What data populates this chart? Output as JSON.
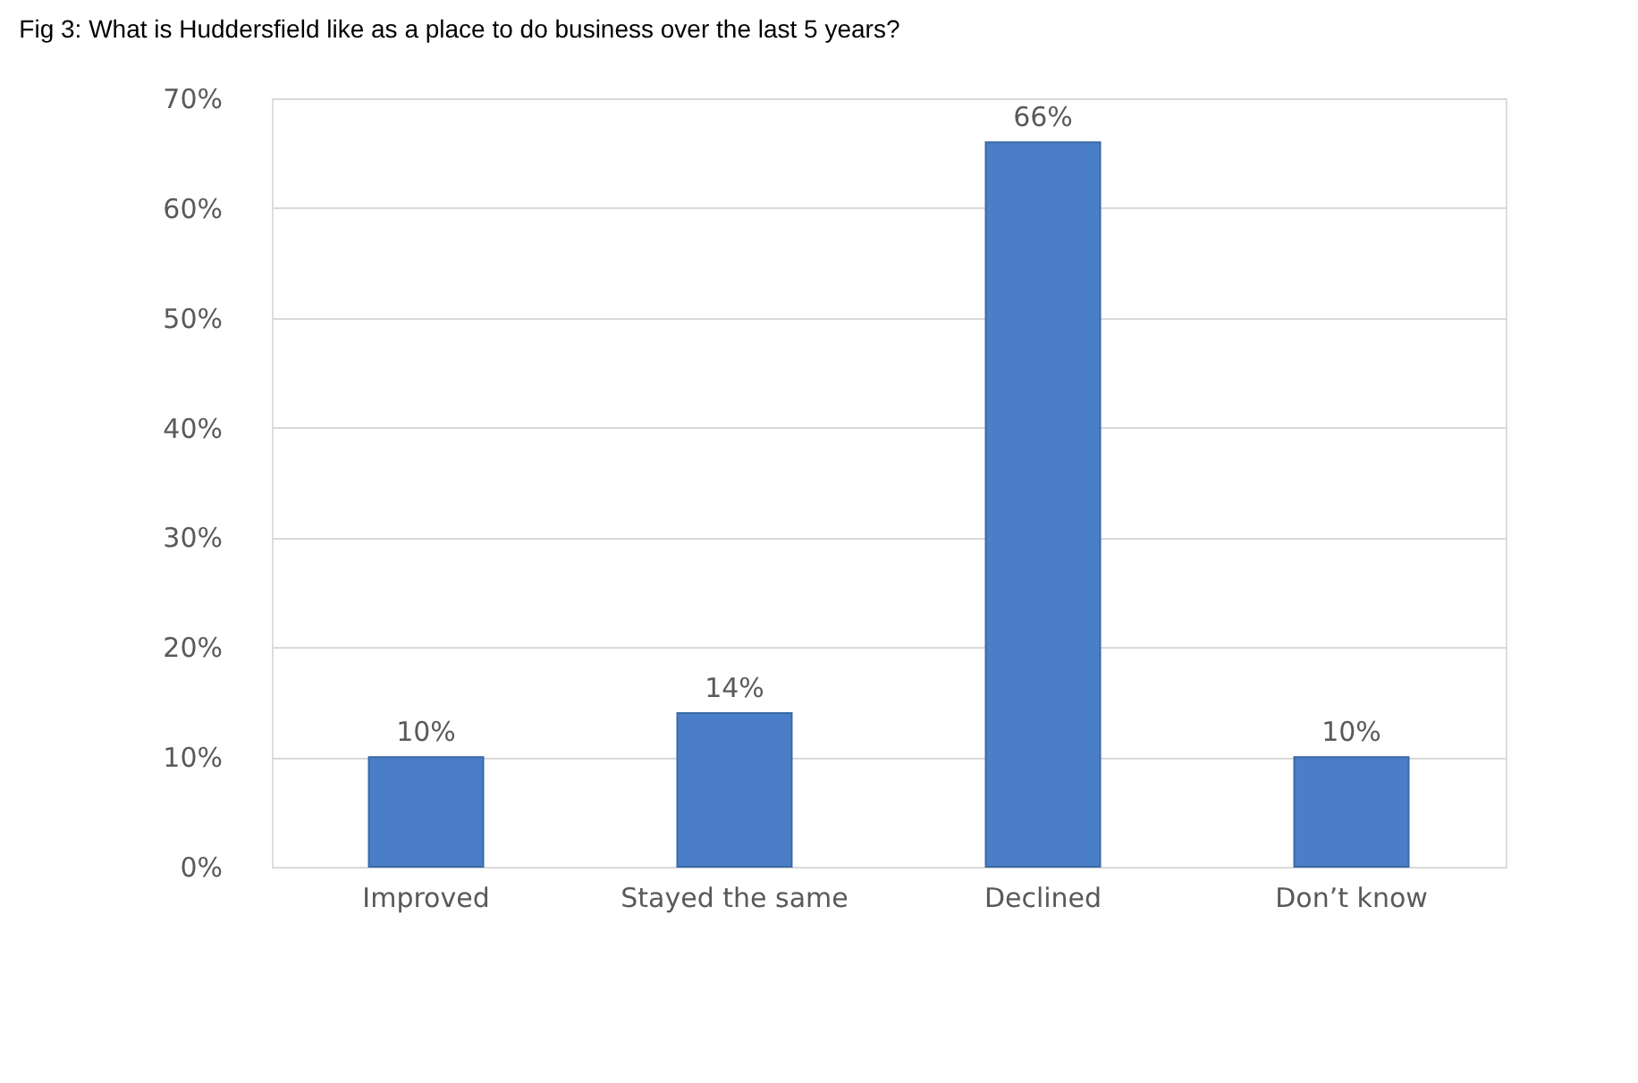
{
  "chart_data": {
    "type": "bar",
    "title": "Fig 3: What is Huddersfield like as a place to do business over the last 5 years?",
    "categories": [
      "Improved",
      "Stayed the same",
      "Declined",
      "Don’t know"
    ],
    "values": [
      10,
      14,
      66,
      10
    ],
    "value_labels": [
      "10%",
      "14%",
      "66%",
      "10%"
    ],
    "color": "#4a7ec6",
    "ylim": [
      0,
      70
    ],
    "yticks": [
      {
        "value": 0,
        "label": "0%"
      },
      {
        "value": 10,
        "label": "10%"
      },
      {
        "value": 20,
        "label": "20%"
      },
      {
        "value": 30,
        "label": "30%"
      },
      {
        "value": 40,
        "label": "40%"
      },
      {
        "value": 50,
        "label": "50%"
      },
      {
        "value": 60,
        "label": "60%"
      },
      {
        "value": 70,
        "label": "70%"
      }
    ],
    "grid": "y"
  }
}
